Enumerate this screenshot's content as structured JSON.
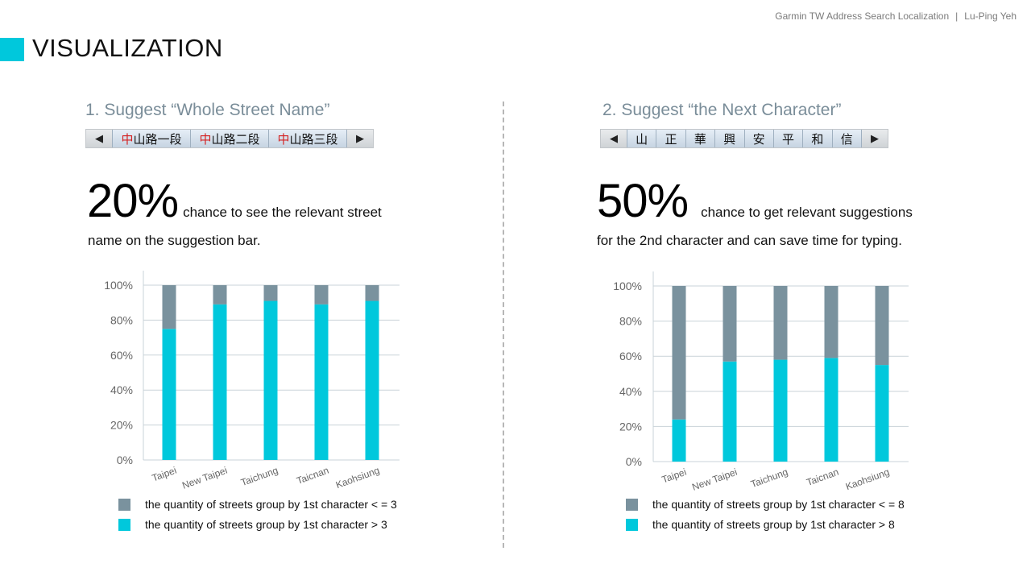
{
  "header": {
    "project": "Garmin TW Address Search Localization",
    "separator": "|",
    "author": "Lu-Ping Yeh"
  },
  "page_title": "VISUALIZATION",
  "colors": {
    "accent": "#00c8dc",
    "gray_series": "#7a929e",
    "cyan_series": "#00c8dc"
  },
  "left": {
    "heading": "1. Suggest “Whole Street Name”",
    "bar": {
      "prev_arrow": "◀",
      "next_arrow": "▶",
      "items": [
        {
          "hl": "中",
          "rest": "山路一段"
        },
        {
          "hl": "中",
          "rest": "山路二段"
        },
        {
          "hl": "中",
          "rest": "山路三段"
        }
      ]
    },
    "stat_value": "20%",
    "stat_text": "chance to see the relevant street",
    "stat_text2": "name on the suggestion bar.",
    "legend": [
      "the quantity of streets group by 1st character < = 3",
      "the quantity of streets group by 1st character > 3"
    ]
  },
  "right": {
    "heading": "2. Suggest “the Next Character”",
    "bar": {
      "prev_arrow": "◀",
      "next_arrow": "▶",
      "chars": [
        "山",
        "正",
        "華",
        "興",
        "安",
        "平",
        "和",
        "信"
      ]
    },
    "stat_value": "50%",
    "stat_text": "chance to get relevant suggestions",
    "stat_text2": "for the 2nd character and can save time for typing.",
    "legend": [
      "the quantity of streets group by 1st character < = 8",
      "the quantity of streets group by 1st character > 8"
    ]
  },
  "chart_data": [
    {
      "type": "bar",
      "stacked": true,
      "percent": true,
      "categories": [
        "Taipei",
        "New Taipei",
        "Taichung",
        "Taicnan",
        "Kaohsiung"
      ],
      "yticks": [
        "0%",
        "20%",
        "40%",
        "60%",
        "80%",
        "100%"
      ],
      "ylim": [
        0,
        100
      ],
      "grid": true,
      "series": [
        {
          "name": "the quantity of streets group by 1st character > 3",
          "values": [
            75,
            89,
            91,
            89,
            91
          ]
        },
        {
          "name": "the quantity of streets group by 1st character < = 3",
          "values": [
            25,
            11,
            9,
            11,
            9
          ]
        }
      ]
    },
    {
      "type": "bar",
      "stacked": true,
      "percent": true,
      "categories": [
        "Taipei",
        "New Taipei",
        "Taichung",
        "Taicnan",
        "Kaohsiung"
      ],
      "yticks": [
        "0%",
        "20%",
        "40%",
        "60%",
        "80%",
        "100%"
      ],
      "ylim": [
        0,
        100
      ],
      "grid": true,
      "series": [
        {
          "name": "the quantity of streets group by 1st character > 8",
          "values": [
            24,
            57,
            58,
            59,
            55
          ]
        },
        {
          "name": "the quantity of streets group by 1st character < = 8",
          "values": [
            76,
            43,
            42,
            41,
            45
          ]
        }
      ]
    }
  ]
}
